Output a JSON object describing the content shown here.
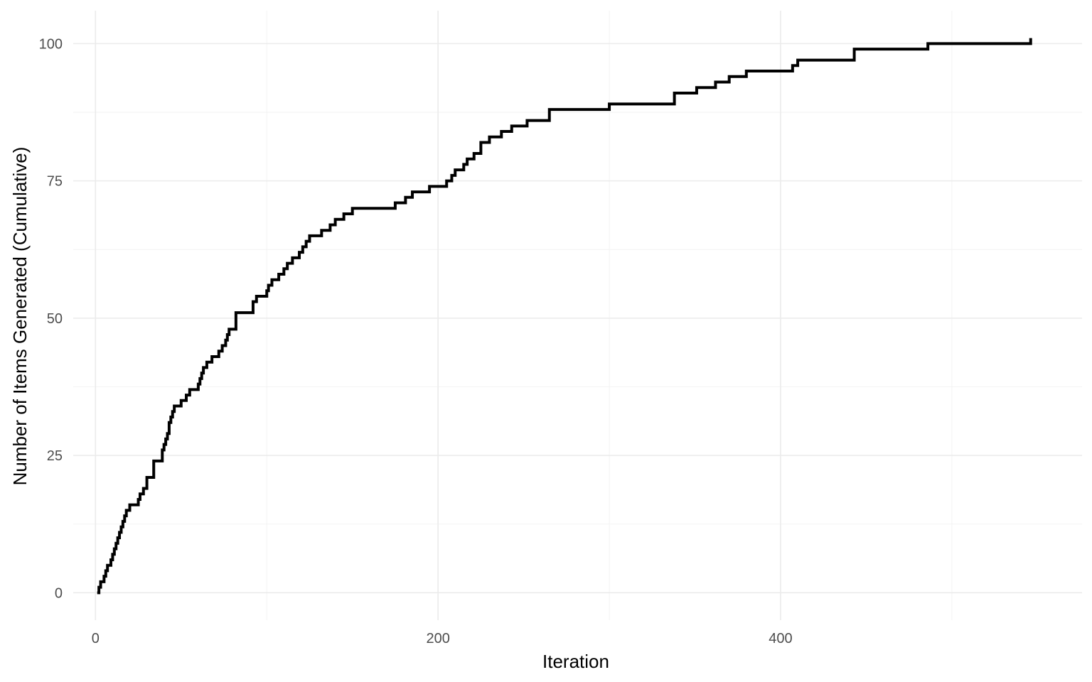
{
  "chart_data": {
    "type": "line",
    "line_shape": "step",
    "title": "",
    "xlabel": "Iteration",
    "ylabel": "Number of Items Generated (Cumulative)",
    "xlim": [
      -13,
      576
    ],
    "ylim": [
      -5,
      106
    ],
    "x_ticks": [
      0,
      200,
      400
    ],
    "x_tick_labels": [
      "0",
      "200",
      "400"
    ],
    "x_minor_ticks": [
      100,
      300,
      500
    ],
    "y_ticks": [
      0,
      25,
      50,
      75,
      100
    ],
    "y_tick_labels": [
      "0",
      "25",
      "50",
      "75",
      "100"
    ],
    "y_minor_ticks": [
      12.5,
      37.5,
      62.5,
      87.5
    ],
    "grid": true,
    "legend": "none",
    "colors": {
      "line": "#000000",
      "grid_major": "#ebebeb",
      "grid_minor": "#f2f2f2",
      "tick_text": "#4d4d4d"
    },
    "series": [
      {
        "x": [
          1,
          2,
          3,
          4,
          5,
          6,
          7,
          8,
          9,
          10,
          11,
          12,
          13,
          14,
          15,
          16,
          17,
          18,
          19,
          20,
          22,
          25,
          26,
          28,
          30,
          32,
          34,
          37,
          39,
          40,
          41,
          42,
          43,
          44,
          45,
          46,
          47,
          50,
          53,
          55,
          57,
          60,
          61,
          62,
          63,
          65,
          68,
          70,
          72,
          73,
          74,
          76,
          77,
          78,
          80,
          82,
          88,
          92,
          94,
          96,
          97,
          98,
          100,
          101,
          103,
          105,
          107,
          110,
          112,
          113,
          115,
          117,
          119,
          121,
          123,
          124,
          125,
          128,
          129,
          130,
          132,
          135,
          137,
          140,
          145,
          150,
          153,
          155,
          160,
          170,
          175,
          178,
          181,
          182,
          185,
          190,
          195,
          199,
          201,
          205,
          208,
          210,
          212,
          214,
          215,
          217,
          219,
          221,
          222,
          224,
          225,
          230,
          237,
          238,
          243,
          245,
          248,
          252,
          265,
          300,
          330,
          335,
          338,
          340,
          351,
          358,
          362,
          370,
          380,
          387,
          396,
          405,
          407,
          410,
          415,
          430,
          440,
          443,
          462,
          470,
          482,
          486,
          500,
          505,
          520,
          546
        ],
        "y": [
          0,
          1,
          2,
          2,
          3,
          4,
          5,
          5,
          6,
          7,
          8,
          9,
          10,
          11,
          12,
          13,
          14,
          15,
          15,
          16,
          16,
          17,
          18,
          19,
          21,
          21,
          24,
          24,
          26,
          27,
          28,
          29,
          31,
          32,
          33,
          34,
          34,
          35,
          36,
          37,
          37,
          38,
          39,
          40,
          41,
          42,
          43,
          43,
          44,
          44,
          45,
          46,
          47,
          48,
          48,
          51,
          51,
          53,
          54,
          54,
          54,
          54,
          55,
          56,
          57,
          57,
          58,
          59,
          60,
          60,
          61,
          61,
          62,
          63,
          64,
          64,
          65,
          65,
          65,
          65,
          66,
          66,
          67,
          68,
          69,
          70,
          70,
          70,
          70,
          70,
          71,
          71,
          72,
          72,
          73,
          73,
          74,
          74,
          74,
          75,
          76,
          77,
          77,
          77,
          78,
          79,
          79,
          80,
          80,
          80,
          82,
          83,
          84,
          84,
          85,
          85,
          85,
          86,
          88,
          89,
          89,
          89,
          91,
          91,
          92,
          92,
          93,
          94,
          95,
          95,
          95,
          95,
          96,
          97,
          97,
          97,
          97,
          99,
          99,
          99,
          99,
          100,
          100,
          100,
          100,
          101
        ]
      }
    ]
  }
}
